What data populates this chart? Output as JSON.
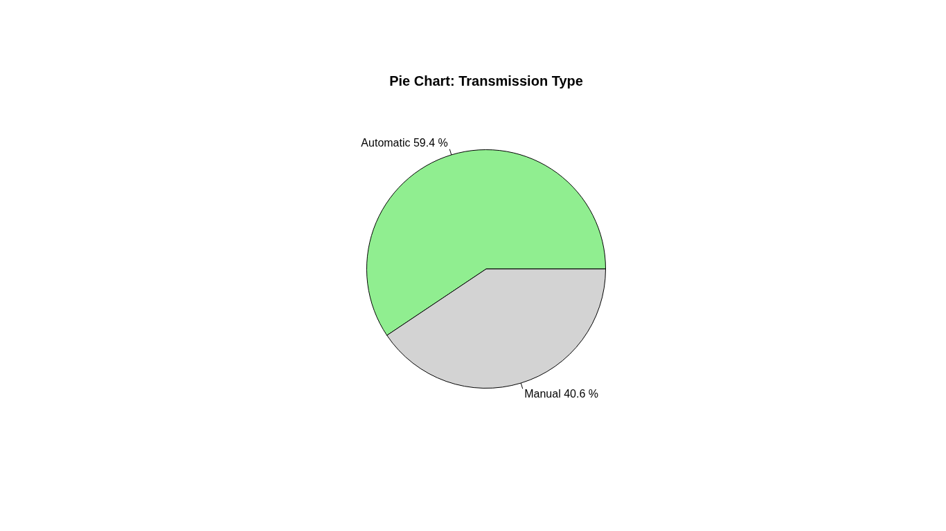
{
  "chart_data": {
    "type": "pie",
    "title": "Pie Chart: Transmission Type",
    "categories": [
      "Automatic",
      "Manual"
    ],
    "values": [
      59.4,
      40.6
    ],
    "value_labels": [
      "59.4 %",
      "40.6 %"
    ],
    "colors": [
      "#90ee90",
      "#d3d3d3"
    ]
  }
}
